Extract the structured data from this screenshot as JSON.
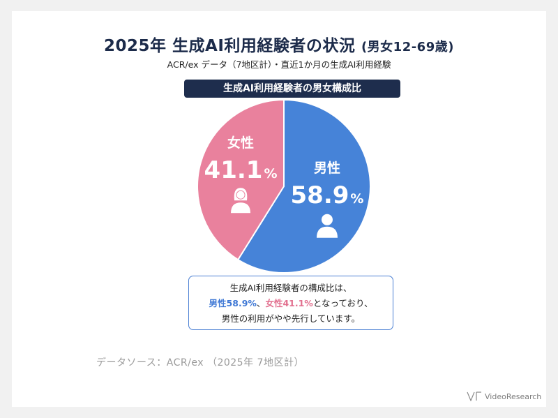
{
  "header": {
    "title_main": "2025年 生成AI利用経験者の状況",
    "title_suffix": "(男女12-69歳)",
    "subtitle": "ACR/ex データ（7地区計）・直近1か月の生成AI利用経験"
  },
  "chart_data": {
    "type": "pie",
    "title": "生成AI利用経験者の男女構成比",
    "slices": [
      {
        "label": "男性",
        "value": 58.9,
        "display": "58.9",
        "unit": "%",
        "color": "#4683d8",
        "icon": "male-person-icon"
      },
      {
        "label": "女性",
        "value": 41.1,
        "display": "41.1",
        "unit": "%",
        "color": "#e9819d",
        "icon": "female-person-icon"
      }
    ]
  },
  "callout": {
    "line1": "生成AI利用経験者の構成比は、",
    "male_text": "男性58.9%",
    "sep": "、",
    "female_text": "女性41.1%",
    "line2_tail": "となっており、",
    "line3": "男性の利用がやや先行しています。"
  },
  "footer": {
    "source": "データソース：ACR/ex （2025年 7地区計）",
    "brand": "VideoResearch"
  }
}
